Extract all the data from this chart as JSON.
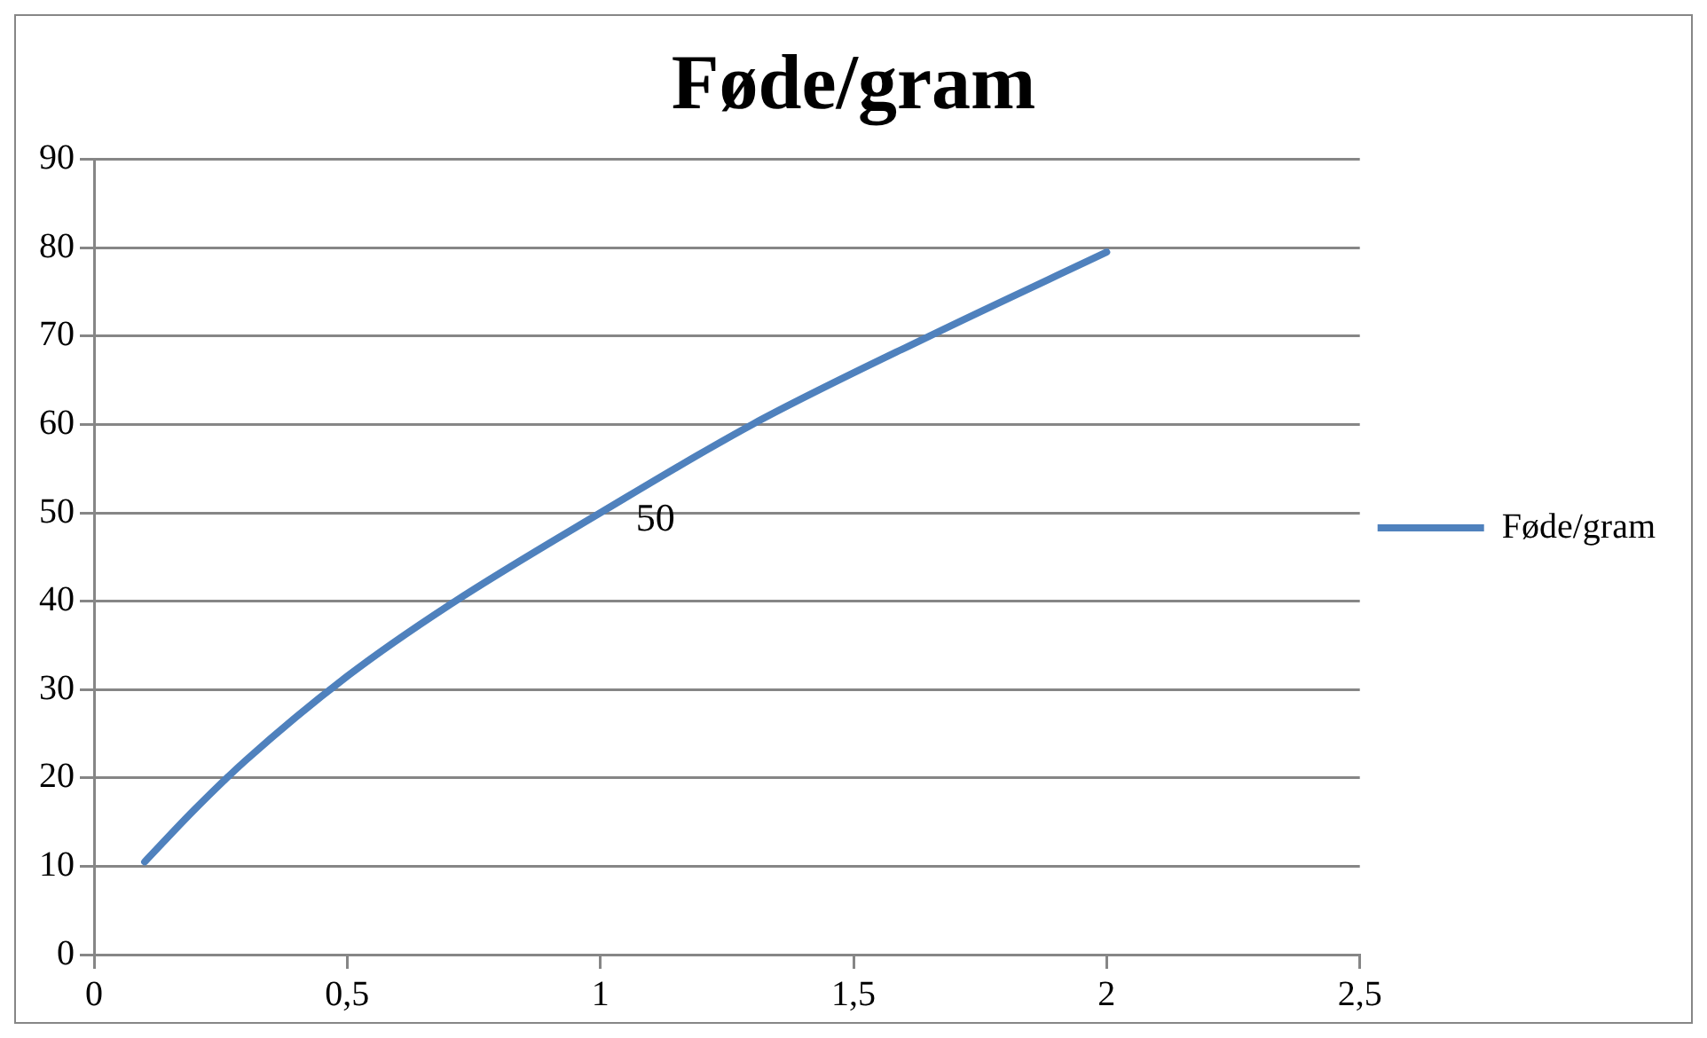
{
  "chart_data": {
    "type": "line",
    "title": "Føde/gram",
    "x": [
      0.1,
      0.2,
      0.3,
      0.5,
      0.7,
      1,
      1.3,
      1.65,
      2
    ],
    "series": [
      {
        "name": "Føde/gram",
        "color": "#4f81bd",
        "values": [
          10.5,
          16.5,
          22,
          31.5,
          39.5,
          50,
          60,
          70,
          79.5
        ]
      }
    ],
    "xlim": [
      0,
      2.5
    ],
    "xticks": [
      0,
      {
        "value": 0.5,
        "label": "0,5"
      },
      1,
      {
        "value": 1.5,
        "label": "1,5"
      },
      2,
      {
        "value": 2.5,
        "label": "2,5"
      }
    ],
    "ylim": [
      0,
      90
    ],
    "yticks": [
      0,
      10,
      20,
      30,
      40,
      50,
      60,
      70,
      80,
      90
    ],
    "annotations": [
      {
        "text": "50",
        "x": 1,
        "y": 50
      }
    ],
    "grid": "y",
    "legend": "right",
    "marker": "none",
    "line_style": "solid"
  }
}
